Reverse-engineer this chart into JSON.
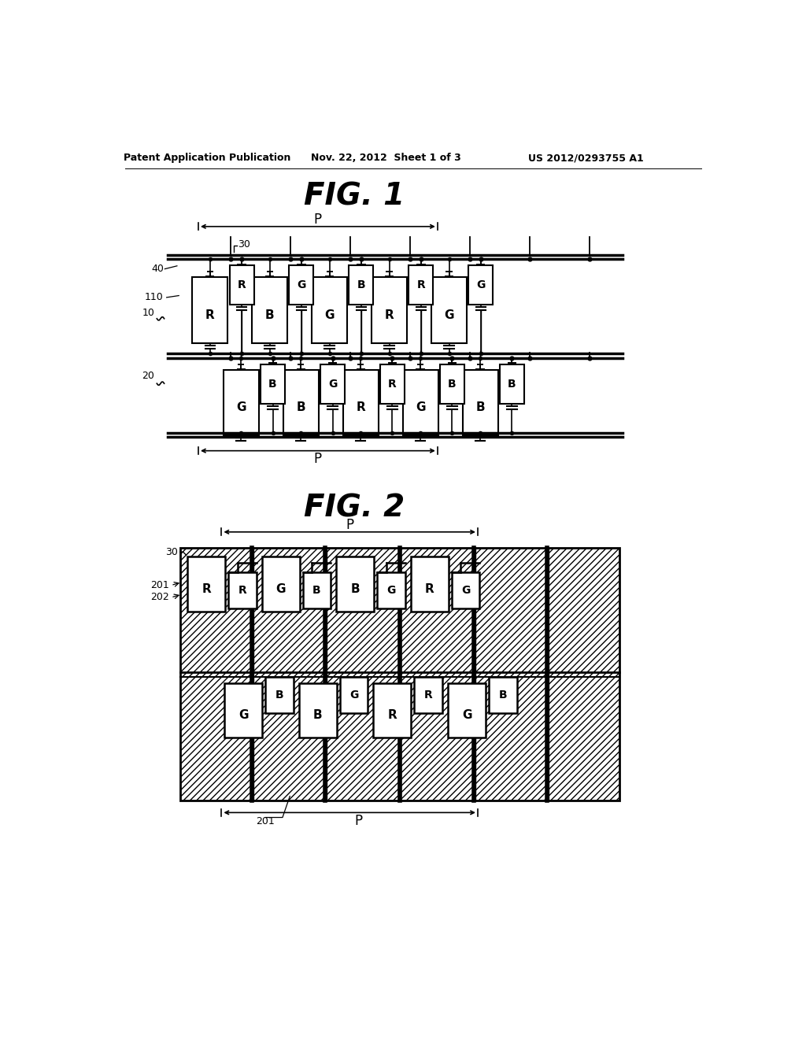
{
  "header_left": "Patent Application Publication",
  "header_mid": "Nov. 22, 2012  Sheet 1 of 3",
  "header_right": "US 2012/0293755 A1",
  "fig1_title": "FIG. 1",
  "fig2_title": "FIG. 2",
  "fig1": {
    "row10_groups": [
      {
        "large": "R",
        "small": "G"
      },
      {
        "large": "B",
        "small": "G"
      },
      {
        "large": "G",
        "small": "B"
      },
      {
        "large": "R",
        "small": "R"
      },
      {
        "large": "G",
        "small": "G"
      }
    ],
    "row20_groups": [
      {
        "large": "G",
        "small": "B"
      },
      {
        "large": "B",
        "small": "G"
      },
      {
        "large": "R",
        "small": "R"
      },
      {
        "large": "G",
        "small": "B"
      },
      {
        "large": "B",
        "small": "B"
      }
    ]
  },
  "fig2": {
    "upper_row": [
      "R",
      "R",
      "G",
      "B",
      "B",
      "G",
      "R",
      "G"
    ],
    "lower_row": [
      "G",
      "B",
      "B",
      "G",
      "R",
      "R",
      "G",
      "B",
      "B"
    ]
  }
}
